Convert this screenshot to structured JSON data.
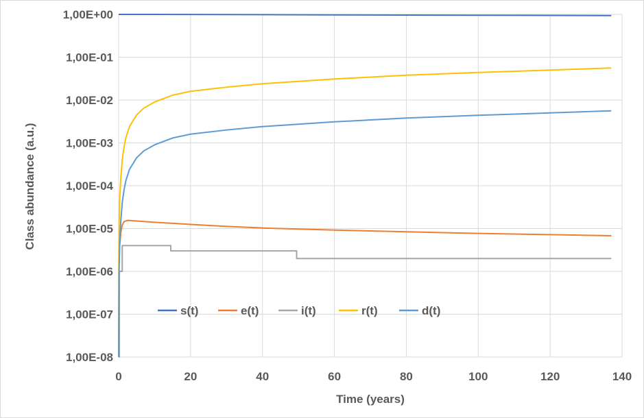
{
  "chart_data": {
    "type": "line",
    "title": "",
    "xlabel": "Time (years)",
    "ylabel": "Class abundance (a.u.)",
    "xlim": [
      0,
      140
    ],
    "ylim": [
      1e-08,
      1
    ],
    "yscale": "log",
    "grid": true,
    "legend_position": "inside-lower-left",
    "x_ticks": [
      0,
      20,
      40,
      60,
      80,
      100,
      120,
      140
    ],
    "x_tick_labels": [
      "0",
      "20",
      "40",
      "60",
      "80",
      "100",
      "120",
      "140"
    ],
    "y_ticks": [
      1e-08,
      1e-07,
      1e-06,
      1e-05,
      0.0001,
      0.001,
      0.01,
      0.1,
      1
    ],
    "y_tick_labels": [
      "1,00E-08",
      "1,00E-07",
      "1,00E-06",
      "1,00E-05",
      "1,00E-04",
      "1,00E-03",
      "1,00E-02",
      "1,00E-01",
      "1,00E+00"
    ],
    "series": [
      {
        "name": "s(t)",
        "color": "#4472C4",
        "x": [
          0,
          10,
          20,
          40,
          60,
          80,
          100,
          120,
          137
        ],
        "y": [
          1.0,
          0.998,
          0.995,
          0.985,
          0.975,
          0.965,
          0.955,
          0.945,
          0.938
        ]
      },
      {
        "name": "e(t)",
        "color": "#ED7D31",
        "x": [
          0,
          0.1,
          0.3,
          0.6,
          1,
          1.5,
          2.5,
          5,
          10,
          20,
          30,
          40,
          60,
          80,
          100,
          120,
          137
        ],
        "y": [
          1e-08,
          1e-06,
          4e-06,
          8e-06,
          1.2e-05,
          1.45e-05,
          1.55e-05,
          1.5e-05,
          1.4e-05,
          1.25e-05,
          1.12e-05,
          1.03e-05,
          9.2e-06,
          8.4e-06,
          7.7e-06,
          7.2e-06,
          6.8e-06
        ]
      },
      {
        "name": "i(t)",
        "color": "#A5A5A5",
        "x": [
          0,
          0.2,
          0.2,
          1,
          1,
          14.5,
          14.5,
          49.5,
          49.5,
          137
        ],
        "y": [
          1e-08,
          1e-08,
          1e-06,
          1e-06,
          4e-06,
          4e-06,
          3e-06,
          3e-06,
          2e-06,
          2e-06
        ]
      },
      {
        "name": "r(t)",
        "color": "#FFC000",
        "x": [
          0,
          0.05,
          0.1,
          0.3,
          0.6,
          1,
          1.5,
          2,
          3,
          5,
          7,
          10,
          15,
          20,
          30,
          40,
          60,
          80,
          100,
          120,
          137
        ],
        "y": [
          1e-08,
          1e-06,
          1e-05,
          5e-05,
          0.00015,
          0.0004,
          0.0008,
          0.0013,
          0.0024,
          0.0045,
          0.0065,
          0.009,
          0.013,
          0.016,
          0.02,
          0.024,
          0.031,
          0.038,
          0.044,
          0.05,
          0.056
        ]
      },
      {
        "name": "d(t)",
        "color": "#5B9BD5",
        "x": [
          0,
          0.05,
          0.1,
          0.3,
          0.6,
          1,
          1.5,
          2,
          3,
          5,
          7,
          10,
          15,
          20,
          30,
          40,
          60,
          80,
          100,
          120,
          137
        ],
        "y": [
          1e-08,
          1e-07,
          1e-06,
          5e-06,
          1.5e-05,
          4e-05,
          8e-05,
          0.00013,
          0.00024,
          0.00045,
          0.00065,
          0.0009,
          0.0013,
          0.0016,
          0.002,
          0.0024,
          0.0031,
          0.0038,
          0.0044,
          0.005,
          0.0056
        ]
      }
    ]
  }
}
